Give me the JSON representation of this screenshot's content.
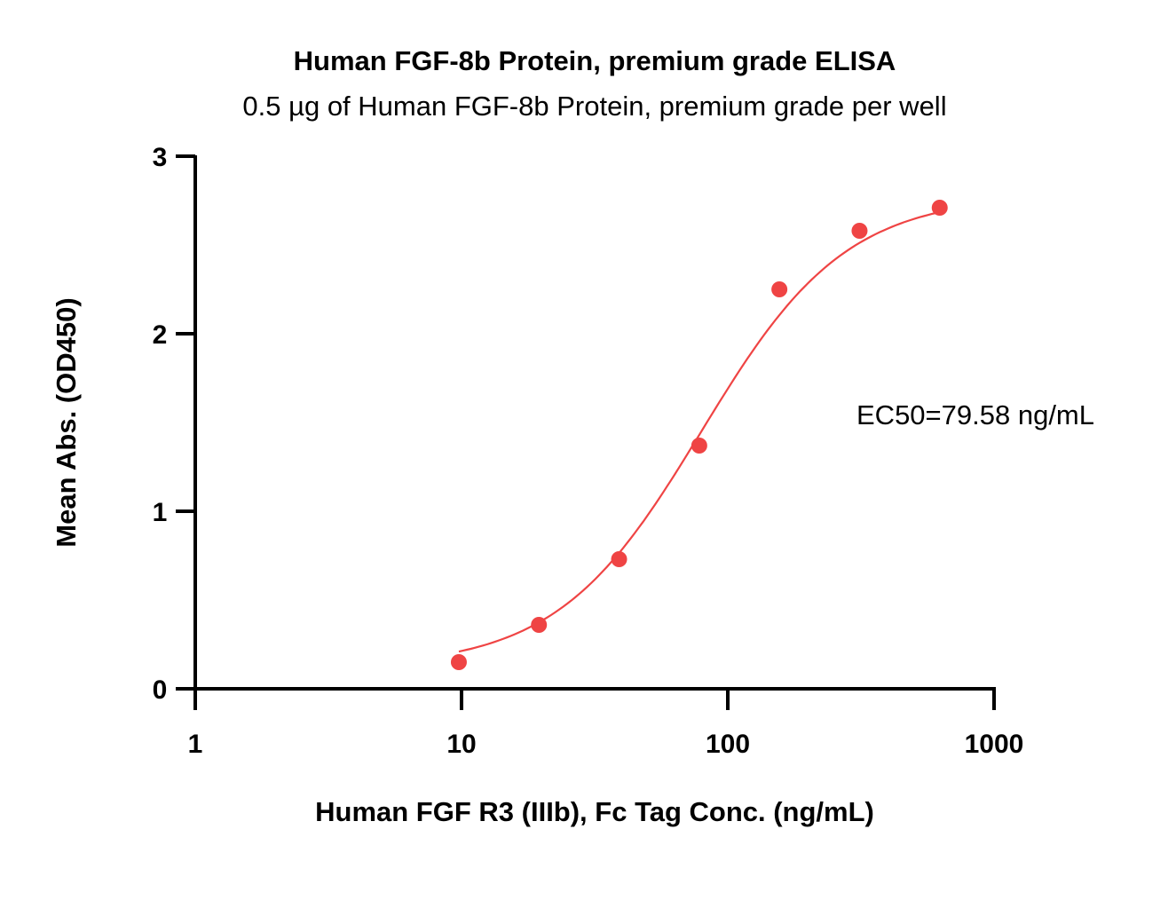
{
  "chart_data": {
    "type": "scatter",
    "title": "Human FGF-8b Protein, premium grade ELISA",
    "subtitle": "0.5 µg of Human FGF-8b Protein, premium grade per well",
    "xlabel": "Human FGF R3 (IIIb), Fc Tag Conc. (ng/mL)",
    "ylabel": "Mean Abs. (OD450)",
    "x_scale": "log",
    "xlim": [
      1,
      1000
    ],
    "ylim": [
      0,
      3
    ],
    "x_ticks": [
      1,
      10,
      100,
      1000
    ],
    "x_tick_labels": [
      "1",
      "10",
      "100",
      "1000"
    ],
    "y_ticks": [
      0,
      1,
      2,
      3
    ],
    "y_tick_labels": [
      "0",
      "1",
      "2",
      "3"
    ],
    "grid": false,
    "annotation": "EC50=79.58 ng/mL",
    "series": [
      {
        "color": "#ef4444",
        "x": [
          9.77,
          19.53,
          39.06,
          78.13,
          156.25,
          312.5,
          625
        ],
        "y": [
          0.15,
          0.36,
          0.73,
          1.37,
          2.25,
          2.58,
          2.71
        ],
        "fit": {
          "model": "4PL",
          "bottom": 0.12,
          "top": 2.78,
          "ec50": 79.58,
          "hill": 1.6,
          "x_range": [
            9.77,
            625
          ]
        }
      }
    ]
  }
}
